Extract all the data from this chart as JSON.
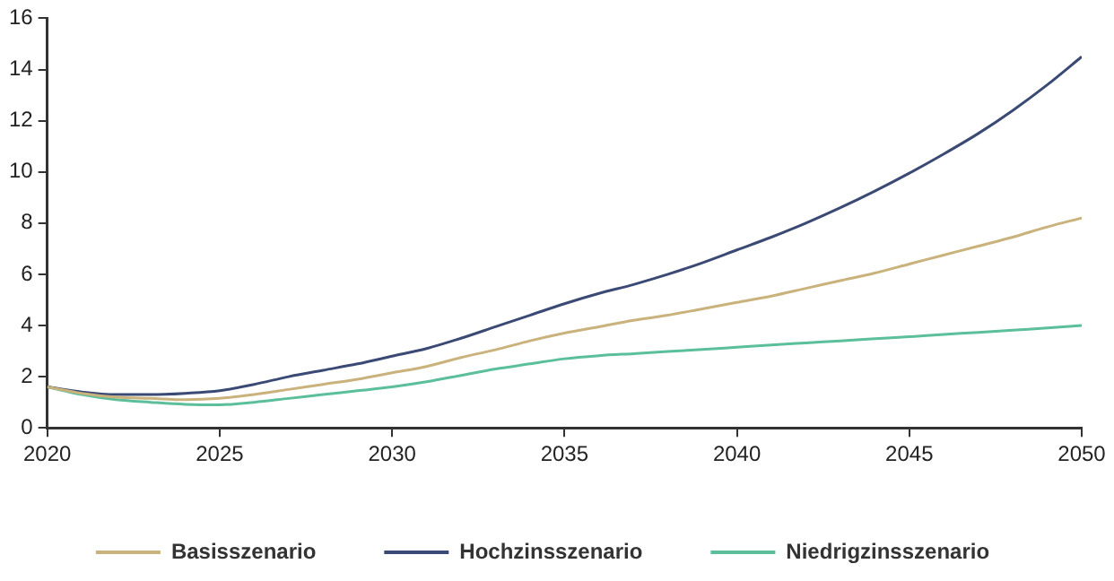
{
  "chart_data": {
    "type": "line",
    "x": [
      2020,
      2021,
      2022,
      2023,
      2024,
      2025,
      2026,
      2027,
      2028,
      2029,
      2030,
      2031,
      2032,
      2033,
      2034,
      2035,
      2036,
      2037,
      2038,
      2039,
      2040,
      2041,
      2042,
      2043,
      2044,
      2045,
      2046,
      2047,
      2048,
      2049,
      2050
    ],
    "series": [
      {
        "name": "Basisszenario",
        "color": "#c9b27c",
        "values": [
          1.6,
          1.35,
          1.2,
          1.15,
          1.1,
          1.15,
          1.3,
          1.5,
          1.7,
          1.9,
          2.15,
          2.4,
          2.75,
          3.05,
          3.4,
          3.7,
          3.95,
          4.2,
          4.4,
          4.65,
          4.9,
          5.15,
          5.45,
          5.75,
          6.05,
          6.4,
          6.75,
          7.1,
          7.45,
          7.85,
          8.2
        ]
      },
      {
        "name": "Hochzinsszenario",
        "color": "#3b4a74",
        "values": [
          1.6,
          1.4,
          1.3,
          1.3,
          1.35,
          1.45,
          1.7,
          2.0,
          2.25,
          2.5,
          2.8,
          3.1,
          3.5,
          3.95,
          4.4,
          4.85,
          5.25,
          5.6,
          6.0,
          6.45,
          6.95,
          7.45,
          8.0,
          8.6,
          9.25,
          9.95,
          10.7,
          11.5,
          12.4,
          13.4,
          14.5
        ]
      },
      {
        "name": "Niedrigzinsszenario",
        "color": "#5bbf9b",
        "values": [
          1.6,
          1.3,
          1.1,
          1.0,
          0.92,
          0.9,
          1.0,
          1.15,
          1.3,
          1.45,
          1.6,
          1.8,
          2.05,
          2.3,
          2.5,
          2.7,
          2.82,
          2.9,
          2.98,
          3.06,
          3.15,
          3.24,
          3.32,
          3.4,
          3.48,
          3.56,
          3.65,
          3.73,
          3.82,
          3.9,
          4.0
        ]
      }
    ],
    "xlim": [
      2020,
      2050
    ],
    "xticks": [
      2020,
      2025,
      2030,
      2035,
      2040,
      2045,
      2050
    ],
    "ylim": [
      0,
      16
    ],
    "yticks": [
      0,
      2,
      4,
      6,
      8,
      10,
      12,
      14,
      16
    ],
    "grid": false,
    "legend": "bottom",
    "marker": "none",
    "line_style": "solid"
  }
}
